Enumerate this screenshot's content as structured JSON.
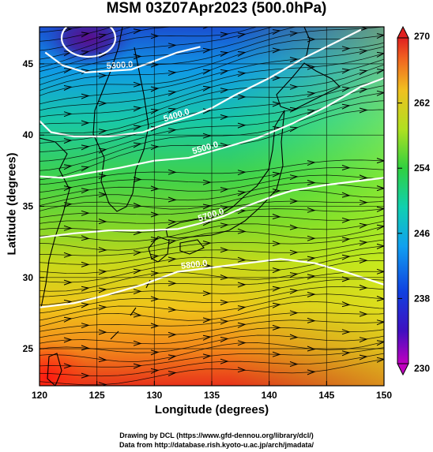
{
  "title": "MSM 03Z07Apr2023 (500.0hPa)",
  "xlabel": "Longitude (degrees)",
  "ylabel": "Latitude  (degrees)",
  "credits": [
    "Drawing by DCL (https://www.gfd-dennou.org/library/dcl/)",
    "Data from http://database.rish.kyoto-u.ac.jp/arch/jmadata/"
  ],
  "chart_data": {
    "type": "heatmap",
    "title": "MSM 03Z07Apr2023 (500.0hPa)",
    "xlabel": "Longitude (degrees)",
    "ylabel": "Latitude  (degrees)",
    "xlim": [
      120,
      150
    ],
    "ylim": [
      22.4,
      47.6
    ],
    "xticks": [
      120,
      125,
      130,
      135,
      140,
      145,
      150
    ],
    "yticks": [
      25,
      30,
      35,
      40,
      45
    ],
    "colorbar": {
      "min": 230,
      "max": 270,
      "ticks": [
        230,
        238,
        246,
        254,
        262,
        270
      ],
      "extend": "both"
    },
    "contours": [
      {
        "label": "5300.0",
        "points": [
          [
            120.5,
            45.8
          ],
          [
            122,
            44.9
          ],
          [
            124,
            44.4
          ],
          [
            126,
            44.5
          ],
          [
            128,
            44.6
          ],
          [
            130,
            45.2
          ],
          [
            132,
            45.8
          ],
          [
            134,
            46.2
          ]
        ]
      },
      {
        "label": "5400.0",
        "points": [
          [
            120,
            41.0
          ],
          [
            121,
            40.2
          ],
          [
            123,
            39.9
          ],
          [
            126,
            39.9
          ],
          [
            129,
            40.2
          ],
          [
            131,
            40.8
          ],
          [
            133,
            41.3
          ],
          [
            135,
            41.9
          ],
          [
            137,
            42.8
          ],
          [
            140,
            44.0
          ],
          [
            143,
            45.4
          ],
          [
            146,
            46.6
          ],
          [
            148,
            47.4
          ]
        ]
      },
      {
        "label": "5500.0",
        "points": [
          [
            120,
            37.1
          ],
          [
            122,
            37.0
          ],
          [
            124,
            37.3
          ],
          [
            127,
            37.7
          ],
          [
            130,
            38.2
          ],
          [
            133,
            38.4
          ],
          [
            136,
            39.1
          ],
          [
            139,
            39.8
          ],
          [
            142,
            40.8
          ],
          [
            145,
            42.0
          ],
          [
            148,
            43.4
          ],
          [
            150,
            44.0
          ]
        ]
      },
      {
        "label": "5700.0",
        "points": [
          [
            120,
            32.8
          ],
          [
            123,
            33.1
          ],
          [
            126,
            33.3
          ],
          [
            129,
            33.3
          ],
          [
            132,
            33.4
          ],
          [
            134,
            33.8
          ],
          [
            136,
            34.3
          ],
          [
            138,
            35.0
          ],
          [
            140,
            35.6
          ],
          [
            142,
            36.1
          ],
          [
            145,
            36.5
          ],
          [
            148,
            36.8
          ],
          [
            150,
            37.0
          ]
        ]
      },
      {
        "label": "5800.0",
        "points": [
          [
            120,
            27.9
          ],
          [
            123,
            28.2
          ],
          [
            126,
            28.8
          ],
          [
            129,
            29.5
          ],
          [
            132,
            30.4
          ],
          [
            135,
            30.7
          ],
          [
            138,
            31.0
          ],
          [
            141,
            31.3
          ],
          [
            144,
            31.0
          ],
          [
            147,
            30.3
          ],
          [
            150,
            29.5
          ]
        ]
      }
    ],
    "cold_center": {
      "label": "5300.0",
      "center": [
        124.5,
        46.9
      ]
    }
  }
}
